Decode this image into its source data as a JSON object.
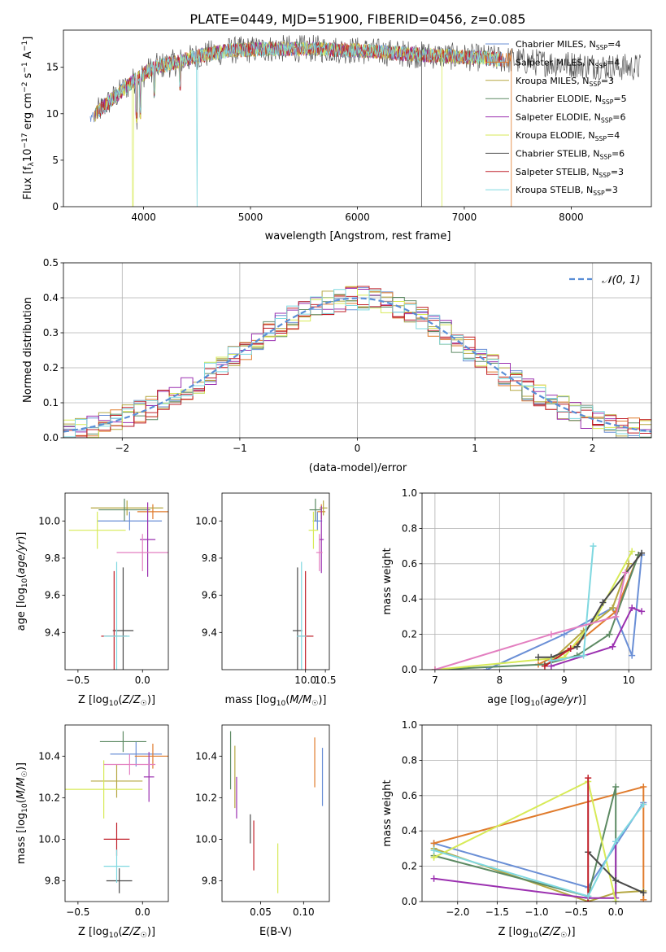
{
  "title": "PLATE=0449, MJD=51900, FIBERID=0456, z=0.085",
  "colors": [
    "#6a8fd6",
    "#e07b2c",
    "#b5a742",
    "#5d8a63",
    "#9b30b0",
    "#d7ea57",
    "#4a4a4a",
    "#c0202a",
    "#7fd8e0",
    "#e37fc0"
  ],
  "chart_data": [
    {
      "type": "line",
      "title": "PLATE=0449, MJD=51900, FIBERID=0456, z=0.085",
      "xlabel": "wavelength [Angstrom, rest frame]",
      "ylabel": "Flux [f_λ10^{-17} erg cm^{-2} s^{-1} A^{-1}]",
      "xlim": [
        3250,
        8750
      ],
      "ylim": [
        0,
        19
      ],
      "xticks": [
        "4000",
        "5000",
        "6000",
        "7000",
        "8000"
      ],
      "yticks": [
        "0",
        "5",
        "10",
        "15"
      ],
      "legend_position": "top-right",
      "series": [
        {
          "name": "Chabrier MILES, N_SSP=4"
        },
        {
          "name": "Salpeter MILES, N_SSP=4"
        },
        {
          "name": "Kroupa MILES, N_SSP=3"
        },
        {
          "name": "Chabrier ELODIE, N_SSP=5"
        },
        {
          "name": "Salpeter ELODIE, N_SSP=6"
        },
        {
          "name": "Kroupa ELODIE, N_SSP=4"
        },
        {
          "name": "Chabrier STELIB, N_SSP=6"
        },
        {
          "name": "Salpeter STELIB, N_SSP=3"
        },
        {
          "name": "Kroupa STELIB, N_SSP=3"
        }
      ],
      "continuum": {
        "x": [
          3500,
          3700,
          3900,
          4100,
          4300,
          4500,
          4800,
          5200,
          5600,
          6000,
          6400,
          6800,
          7200,
          7600,
          8000,
          8400
        ],
        "y": [
          9.5,
          11.5,
          13.5,
          15,
          15.5,
          16.2,
          16.8,
          17,
          17,
          16.8,
          16.5,
          16.2,
          16,
          15.6,
          15.3,
          15
        ]
      }
    },
    {
      "type": "bar",
      "xlabel": "(data-model)/error",
      "ylabel": "Normed distribution",
      "xlim": [
        -2.5,
        2.5
      ],
      "ylim": [
        0,
        0.5
      ],
      "xticks": [
        "−2",
        "−1",
        "0",
        "1",
        "2"
      ],
      "yticks": [
        "0.0",
        "0.1",
        "0.2",
        "0.3",
        "0.4",
        "0.5"
      ],
      "legend_position": "top-right",
      "reference_curve": {
        "name": "𝒩(0, 1)",
        "mean": 0,
        "std": 1
      }
    },
    {
      "type": "scatter",
      "xlabel": "Z [log10(Z/Z☉)]",
      "ylabel": "age [log10(age/yr)]",
      "xlim": [
        -0.6,
        0.2
      ],
      "ylim": [
        9.2,
        10.15
      ],
      "xticks": [
        "−0.5",
        "0.0"
      ],
      "yticks": [
        "9.4",
        "9.6",
        "9.8",
        "10.0"
      ],
      "points": [
        {
          "x": -0.1,
          "y": 10.0,
          "xerr": 0.25,
          "yerr": 0.05
        },
        {
          "x": 0.08,
          "y": 10.05,
          "xerr": 0.12,
          "yerr": 0.04
        },
        {
          "x": -0.12,
          "y": 10.07,
          "xerr": 0.28,
          "yerr": 0.04
        },
        {
          "x": -0.14,
          "y": 10.06,
          "xerr": 0.2,
          "yerr": 0.06
        },
        {
          "x": 0.04,
          "y": 9.9,
          "xerr": 0.06,
          "yerr": 0.2
        },
        {
          "x": -0.35,
          "y": 9.95,
          "xerr": 0.22,
          "yerr": 0.1
        },
        {
          "x": -0.15,
          "y": 9.41,
          "xerr": 0.08,
          "yerr": 0.34
        },
        {
          "x": -0.22,
          "y": 9.38,
          "xerr": 0.1,
          "yerr": 0.35
        },
        {
          "x": -0.2,
          "y": 9.38,
          "xerr": 0.1,
          "yerr": 0.4
        },
        {
          "x": 0.0,
          "y": 9.83,
          "xerr": 0.2,
          "yerr": 0.1
        }
      ]
    },
    {
      "type": "scatter",
      "xlabel": "mass [log10(M/M☉)]",
      "ylabel": "",
      "xlim": [
        7.9,
        10.6
      ],
      "ylim": [
        9.2,
        10.15
      ],
      "xticks": [
        "10.0",
        "10.5"
      ],
      "yticks": [
        "9.4",
        "9.6",
        "9.8",
        "10.0"
      ],
      "points": [
        {
          "x": 10.3,
          "y": 10.0,
          "xerr": 0.12,
          "yerr": 0.05
        },
        {
          "x": 10.4,
          "y": 10.05,
          "xerr": 0.1,
          "yerr": 0.04
        },
        {
          "x": 10.45,
          "y": 10.07,
          "xerr": 0.1,
          "yerr": 0.04
        },
        {
          "x": 10.25,
          "y": 10.06,
          "xerr": 0.15,
          "yerr": 0.06
        },
        {
          "x": 10.4,
          "y": 9.9,
          "xerr": 0.06,
          "yerr": 0.18
        },
        {
          "x": 10.2,
          "y": 9.95,
          "xerr": 0.12,
          "yerr": 0.1
        },
        {
          "x": 9.8,
          "y": 9.41,
          "xerr": 0.12,
          "yerr": 0.34
        },
        {
          "x": 10.0,
          "y": 9.38,
          "xerr": 0.2,
          "yerr": 0.35
        },
        {
          "x": 9.9,
          "y": 9.38,
          "xerr": 0.12,
          "yerr": 0.4
        },
        {
          "x": 10.35,
          "y": 9.83,
          "xerr": 0.08,
          "yerr": 0.1
        }
      ]
    },
    {
      "type": "line",
      "xlabel": "age [log10(age/yr)]",
      "ylabel": "mass weight",
      "xlim": [
        6.8,
        10.35
      ],
      "ylim": [
        0,
        1.0
      ],
      "xticks": [
        "7",
        "8",
        "9",
        "10"
      ],
      "yticks": [
        "0.0",
        "0.2",
        "0.4",
        "0.6",
        "0.8",
        "1.0"
      ],
      "series": [
        {
          "x": [
            7.8,
            9.0,
            9.75,
            10.05,
            10.2
          ],
          "y": [
            0.0,
            0.2,
            0.35,
            0.08,
            0.65
          ]
        },
        {
          "x": [
            8.6,
            9.1,
            9.8,
            10.15
          ],
          "y": [
            0.03,
            0.12,
            0.33,
            0.65
          ]
        },
        {
          "x": [
            8.8,
            9.3,
            9.75,
            10.0
          ],
          "y": [
            0.05,
            0.22,
            0.35,
            0.6
          ]
        },
        {
          "x": [
            7.0,
            8.7,
            9.2,
            9.7,
            10.15
          ],
          "y": [
            0.0,
            0.03,
            0.08,
            0.2,
            0.65
          ]
        },
        {
          "x": [
            8.8,
            9.75,
            10.05,
            10.2
          ],
          "y": [
            0.02,
            0.13,
            0.35,
            0.33
          ]
        },
        {
          "x": [
            7.0,
            9.0,
            9.5,
            10.05
          ],
          "y": [
            0.0,
            0.07,
            0.3,
            0.67
          ]
        },
        {
          "x": [
            8.6,
            8.8,
            9.2,
            9.6,
            10.2
          ],
          "y": [
            0.07,
            0.07,
            0.13,
            0.38,
            0.66
          ]
        },
        {
          "x": [
            8.7,
            9.1
          ],
          "y": [
            0.02,
            0.12
          ]
        },
        {
          "x": [
            8.8,
            9.3,
            9.45
          ],
          "y": [
            0.05,
            0.08,
            0.7
          ]
        },
        {
          "x": [
            7.0,
            8.8,
            9.8,
            9.95
          ],
          "y": [
            0.0,
            0.2,
            0.3,
            0.55
          ]
        }
      ]
    },
    {
      "type": "scatter",
      "xlabel": "Z [log10(Z/Z☉)]",
      "ylabel": "mass [log10(M/M☉)]",
      "xlim": [
        -0.6,
        0.2
      ],
      "ylim": [
        9.7,
        10.55
      ],
      "xticks": [
        "−0.5",
        "0.0"
      ],
      "yticks": [
        "9.8",
        "10.0",
        "10.2",
        "10.4"
      ],
      "points": [
        {
          "x": -0.05,
          "y": 10.41,
          "xerr": 0.2,
          "yerr": 0.06
        },
        {
          "x": 0.08,
          "y": 10.4,
          "xerr": 0.14,
          "yerr": 0.06
        },
        {
          "x": -0.2,
          "y": 10.28,
          "xerr": 0.2,
          "yerr": 0.08
        },
        {
          "x": -0.15,
          "y": 10.47,
          "xerr": 0.18,
          "yerr": 0.05
        },
        {
          "x": 0.05,
          "y": 10.3,
          "xerr": 0.04,
          "yerr": 0.12
        },
        {
          "x": -0.3,
          "y": 10.24,
          "xerr": 0.3,
          "yerr": 0.14
        },
        {
          "x": -0.18,
          "y": 9.8,
          "xerr": 0.1,
          "yerr": 0.06
        },
        {
          "x": -0.2,
          "y": 10.0,
          "xerr": 0.1,
          "yerr": 0.08
        },
        {
          "x": -0.2,
          "y": 9.87,
          "xerr": 0.1,
          "yerr": 0.08
        },
        {
          "x": -0.1,
          "y": 10.36,
          "xerr": 0.2,
          "yerr": 0.05
        }
      ]
    },
    {
      "type": "scatter",
      "xlabel": "E(B-V)",
      "ylabel": "",
      "xlim": [
        0.005,
        0.13
      ],
      "ylim": [
        9.7,
        10.55
      ],
      "xticks": [
        "0.05",
        "0.10"
      ],
      "yticks": [
        "9.8",
        "10.0",
        "10.2",
        "10.4"
      ],
      "points": [
        {
          "x": 0.122,
          "y": 10.3,
          "xerr": 0,
          "yerr": 0.14
        },
        {
          "x": 0.113,
          "y": 10.37,
          "xerr": 0,
          "yerr": 0.12
        },
        {
          "x": 0.02,
          "y": 10.3,
          "xerr": 0,
          "yerr": 0.15
        },
        {
          "x": 0.015,
          "y": 10.38,
          "xerr": 0,
          "yerr": 0.14
        },
        {
          "x": 0.022,
          "y": 10.2,
          "xerr": 0,
          "yerr": 0.1
        },
        {
          "x": 0.07,
          "y": 9.86,
          "xerr": 0,
          "yerr": 0.12
        },
        {
          "x": 0.038,
          "y": 10.05,
          "xerr": 0,
          "yerr": 0.07
        },
        {
          "x": 0.042,
          "y": 9.97,
          "xerr": 0,
          "yerr": 0.12
        }
      ]
    },
    {
      "type": "line",
      "xlabel": "Z [log10(Z/Z☉)]",
      "ylabel": "mass weight",
      "xlim": [
        -2.45,
        0.45
      ],
      "ylim": [
        0,
        1.0
      ],
      "xticks": [
        "−2.0",
        "−1.5",
        "−1.0",
        "−0.5",
        "0.0"
      ],
      "yticks": [
        "0.0",
        "0.2",
        "0.4",
        "0.6",
        "0.8",
        "1.0"
      ],
      "series": [
        {
          "x": [
            -2.3,
            -0.35,
            0.35
          ],
          "y": [
            0.33,
            0.08,
            0.56
          ]
        },
        {
          "x": [
            -2.3,
            0.35,
            0.35
          ],
          "y": [
            0.33,
            0.65,
            0.01
          ]
        },
        {
          "x": [
            -2.3,
            -0.35,
            0.0,
            0.35
          ],
          "y": [
            0.3,
            0.0,
            0.05,
            0.06
          ]
        },
        {
          "x": [
            -2.3,
            -0.35,
            0.0,
            0.0
          ],
          "y": [
            0.26,
            0.03,
            0.65,
            0.0
          ]
        },
        {
          "x": [
            -2.3,
            -0.35,
            0.0,
            0.0
          ],
          "y": [
            0.13,
            0.02,
            0.02,
            0.34
          ]
        },
        {
          "x": [
            -2.3,
            -0.35,
            0.0
          ],
          "y": [
            0.25,
            0.68,
            0.0
          ]
        },
        {
          "x": [
            -0.35,
            0.0,
            0.35
          ],
          "y": [
            0.28,
            0.12,
            0.05
          ]
        },
        {
          "x": [
            -0.35,
            -0.35
          ],
          "y": [
            0.0,
            0.7
          ]
        },
        {
          "x": [
            -2.3,
            -0.35,
            0.0,
            0.35
          ],
          "y": [
            0.29,
            0.03,
            0.34,
            0.55
          ]
        }
      ]
    }
  ]
}
